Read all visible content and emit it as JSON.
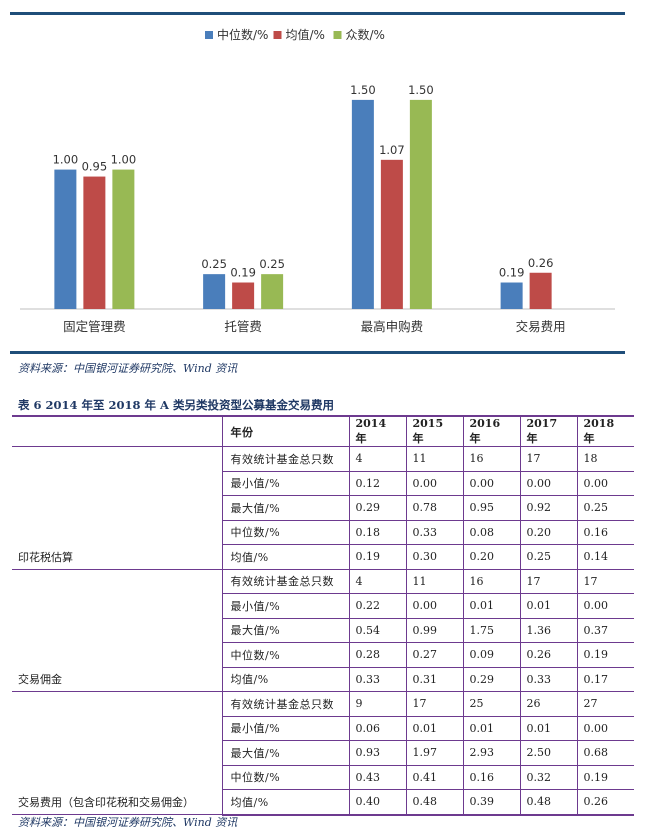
{
  "chart_data": {
    "type": "bar",
    "categories": [
      "固定管理费",
      "托管费",
      "最高申购费",
      "交易费用"
    ],
    "series": [
      {
        "name": "中位数/%",
        "color": "#4a7ebb",
        "values": [
          1.0,
          0.25,
          1.5,
          0.19
        ],
        "labels": [
          "1.00",
          "0.25",
          "1.50",
          "0.19"
        ]
      },
      {
        "name": "均值/%",
        "color": "#be4b48",
        "values": [
          0.95,
          0.19,
          1.07,
          0.26
        ],
        "labels": [
          "0.95",
          "0.19",
          "1.07",
          "0.26"
        ]
      },
      {
        "name": "众数/%",
        "color": "#98b954",
        "values": [
          1.0,
          0.25,
          1.5,
          null
        ],
        "labels": [
          "1.00",
          "0.25",
          "1.50",
          ""
        ]
      }
    ],
    "ylim": [
      0,
      1.7
    ],
    "legend": "top",
    "grid": false
  },
  "chart_source": "资料来源：中国银河证券研究院、Wind 资讯",
  "table_caption": "表 6 2014 年至 2018 年 A 类另类投资型公募基金交易费用",
  "table": {
    "header": {
      "label": "年份",
      "years": [
        "2014 年",
        "2015 年",
        "2016 年",
        "2017 年",
        "2018 年"
      ]
    },
    "groups": [
      {
        "name": "印花税估算",
        "rows": [
          {
            "metric": "有效统计基金总只数",
            "values": [
              "4",
              "11",
              "16",
              "17",
              "18"
            ]
          },
          {
            "metric": "最小值/%",
            "values": [
              "0.12",
              "0.00",
              "0.00",
              "0.00",
              "0.00"
            ]
          },
          {
            "metric": "最大值/%",
            "values": [
              "0.29",
              "0.78",
              "0.95",
              "0.92",
              "0.25"
            ]
          },
          {
            "metric": "中位数/%",
            "values": [
              "0.18",
              "0.33",
              "0.08",
              "0.20",
              "0.16"
            ]
          },
          {
            "metric": "均值/%",
            "values": [
              "0.19",
              "0.30",
              "0.20",
              "0.25",
              "0.14"
            ]
          }
        ]
      },
      {
        "name": "交易佣金",
        "rows": [
          {
            "metric": "有效统计基金总只数",
            "values": [
              "4",
              "11",
              "16",
              "17",
              "17"
            ]
          },
          {
            "metric": "最小值/%",
            "values": [
              "0.22",
              "0.00",
              "0.01",
              "0.01",
              "0.00"
            ]
          },
          {
            "metric": "最大值/%",
            "values": [
              "0.54",
              "0.99",
              "1.75",
              "1.36",
              "0.37"
            ]
          },
          {
            "metric": "中位数/%",
            "values": [
              "0.28",
              "0.27",
              "0.09",
              "0.26",
              "0.19"
            ]
          },
          {
            "metric": "均值/%",
            "values": [
              "0.33",
              "0.31",
              "0.29",
              "0.33",
              "0.17"
            ]
          }
        ]
      },
      {
        "name": "交易费用（包含印花税和交易佣金）",
        "rows": [
          {
            "metric": "有效统计基金总只数",
            "values": [
              "9",
              "17",
              "25",
              "26",
              "27"
            ]
          },
          {
            "metric": "最小值/%",
            "values": [
              "0.06",
              "0.01",
              "0.01",
              "0.01",
              "0.00"
            ]
          },
          {
            "metric": "最大值/%",
            "values": [
              "0.93",
              "1.97",
              "2.93",
              "2.50",
              "0.68"
            ]
          },
          {
            "metric": "中位数/%",
            "values": [
              "0.43",
              "0.41",
              "0.16",
              "0.32",
              "0.19"
            ]
          },
          {
            "metric": "均值/%",
            "values": [
              "0.40",
              "0.48",
              "0.39",
              "0.48",
              "0.26"
            ]
          }
        ]
      }
    ]
  },
  "table_source": "资料来源：中国银河证券研究院、Wind 资讯"
}
